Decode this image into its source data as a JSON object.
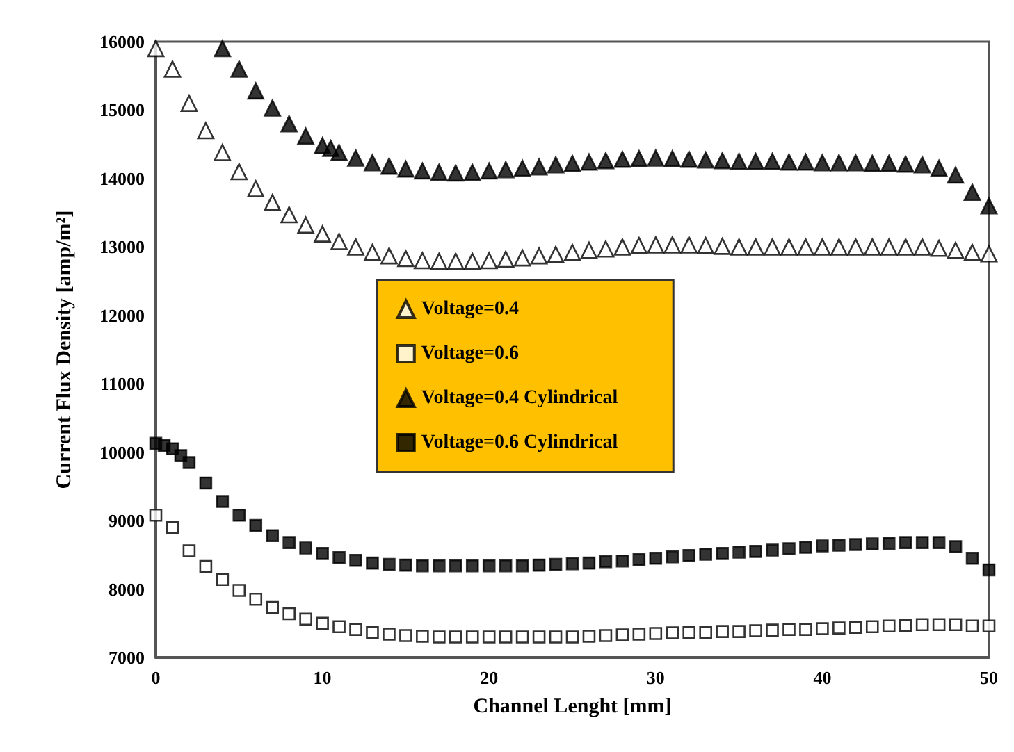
{
  "chart_data": {
    "type": "scatter",
    "xlabel": "Channel Lenght [mm]",
    "ylabel": "Current Flux Density [amp/m²]",
    "xlim": [
      0,
      50
    ],
    "xticks": [
      0,
      10,
      20,
      30,
      40,
      50
    ],
    "ylim": [
      7000,
      16000
    ],
    "yticks": [
      7000,
      8000,
      9000,
      10000,
      11000,
      12000,
      13000,
      14000,
      15000,
      16000
    ],
    "grid": false,
    "legend": "center",
    "series": [
      {
        "name": "Voltage=0.4",
        "color": "#ffffff",
        "marker": "triangle",
        "x": [
          0,
          1,
          2,
          3,
          4,
          5,
          6,
          7,
          8,
          9,
          10,
          11,
          12,
          13,
          14,
          15,
          16,
          17,
          18,
          19,
          20,
          21,
          22,
          23,
          24,
          25,
          26,
          27,
          28,
          29,
          30,
          31,
          32,
          33,
          34,
          35,
          36,
          37,
          38,
          39,
          40,
          41,
          42,
          43,
          44,
          45,
          46,
          47,
          48,
          49,
          50
        ],
        "values": [
          15900,
          15600,
          15100,
          14700,
          14380,
          14100,
          13850,
          13650,
          13470,
          13320,
          13190,
          13080,
          13000,
          12920,
          12870,
          12830,
          12800,
          12790,
          12790,
          12790,
          12800,
          12820,
          12840,
          12870,
          12890,
          12920,
          12950,
          12970,
          13000,
          13020,
          13030,
          13030,
          13030,
          13020,
          13010,
          13000,
          13000,
          13000,
          13000,
          13000,
          13000,
          13000,
          13000,
          13000,
          13000,
          13000,
          13000,
          12980,
          12950,
          12920,
          12900
        ]
      },
      {
        "name": "Voltage=0.6",
        "color": "#ffffff",
        "marker": "square",
        "x": [
          0,
          1,
          2,
          3,
          4,
          5,
          6,
          7,
          8,
          9,
          10,
          11,
          12,
          13,
          14,
          15,
          16,
          17,
          18,
          19,
          20,
          21,
          22,
          23,
          24,
          25,
          26,
          27,
          28,
          29,
          30,
          31,
          32,
          33,
          34,
          35,
          36,
          37,
          38,
          39,
          40,
          41,
          42,
          43,
          44,
          45,
          46,
          47,
          48,
          49,
          50
        ],
        "values": [
          9080,
          8900,
          8560,
          8330,
          8140,
          7980,
          7850,
          7730,
          7640,
          7560,
          7500,
          7450,
          7410,
          7370,
          7340,
          7320,
          7310,
          7300,
          7300,
          7300,
          7300,
          7300,
          7300,
          7300,
          7300,
          7300,
          7310,
          7320,
          7330,
          7340,
          7350,
          7360,
          7370,
          7370,
          7380,
          7380,
          7390,
          7400,
          7410,
          7410,
          7420,
          7430,
          7440,
          7450,
          7460,
          7470,
          7480,
          7480,
          7480,
          7460,
          7460
        ]
      },
      {
        "name": "Voltage=0.4 Cylindrical",
        "color": "#000000",
        "marker": "triangle",
        "x": [
          4,
          5,
          6,
          7,
          8,
          9,
          10,
          10.5,
          11,
          12,
          13,
          14,
          15,
          16,
          17,
          18,
          19,
          20,
          21,
          22,
          23,
          24,
          25,
          26,
          27,
          28,
          29,
          30,
          31,
          32,
          33,
          34,
          35,
          36,
          37,
          38,
          39,
          40,
          41,
          42,
          43,
          44,
          45,
          46,
          47,
          48,
          49,
          50
        ],
        "values": [
          15900,
          15600,
          15280,
          15030,
          14800,
          14620,
          14480,
          14440,
          14380,
          14300,
          14230,
          14180,
          14140,
          14110,
          14090,
          14080,
          14090,
          14110,
          14130,
          14150,
          14170,
          14200,
          14220,
          14240,
          14260,
          14280,
          14290,
          14300,
          14290,
          14280,
          14270,
          14260,
          14250,
          14250,
          14250,
          14240,
          14240,
          14230,
          14230,
          14230,
          14220,
          14220,
          14210,
          14200,
          14150,
          14050,
          13800,
          13600
        ]
      },
      {
        "name": "Voltage=0.6 Cylindrical",
        "color": "#000000",
        "marker": "square",
        "x": [
          0,
          0.5,
          1,
          1.5,
          2,
          3,
          4,
          5,
          6,
          7,
          8,
          9,
          10,
          11,
          12,
          13,
          14,
          15,
          16,
          17,
          18,
          19,
          20,
          21,
          22,
          23,
          24,
          25,
          26,
          27,
          28,
          29,
          30,
          31,
          32,
          33,
          34,
          35,
          36,
          37,
          38,
          39,
          40,
          41,
          42,
          43,
          44,
          45,
          46,
          47,
          48,
          49,
          50
        ],
        "values": [
          10130,
          10100,
          10050,
          9950,
          9850,
          9550,
          9280,
          9080,
          8930,
          8780,
          8680,
          8600,
          8520,
          8460,
          8420,
          8380,
          8360,
          8350,
          8340,
          8340,
          8340,
          8340,
          8340,
          8340,
          8340,
          8350,
          8360,
          8370,
          8380,
          8400,
          8410,
          8430,
          8450,
          8470,
          8490,
          8510,
          8520,
          8540,
          8550,
          8570,
          8590,
          8610,
          8630,
          8640,
          8650,
          8660,
          8670,
          8680,
          8680,
          8680,
          8620,
          8450,
          8280
        ]
      }
    ]
  }
}
